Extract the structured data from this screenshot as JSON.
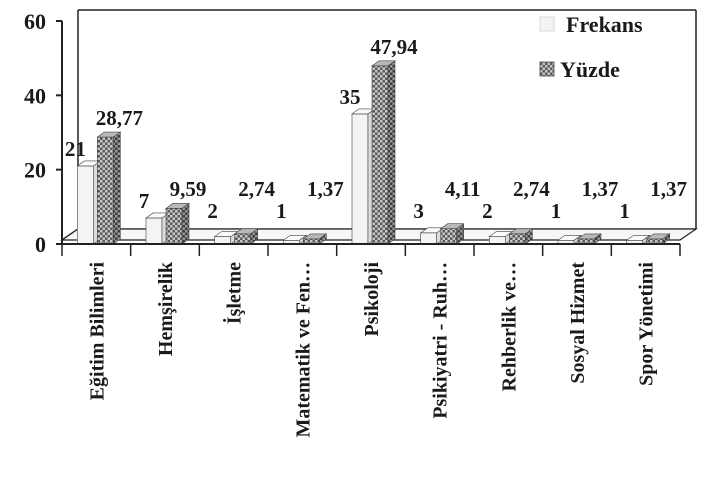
{
  "chart_data": {
    "type": "bar",
    "title": "",
    "xlabel": "",
    "ylabel": "",
    "ylim": [
      0,
      60
    ],
    "yticks": [
      0,
      20,
      40,
      60
    ],
    "grid": false,
    "legend_position": "top-right",
    "categories": [
      "Eğitim Bilimleri",
      "Hemşirelik",
      "İşletme",
      "Matematik ve Fen…",
      "Psikoloji",
      "Psikiyatri - Ruh…",
      "Rehberlik ve…",
      "Sosyal Hizmet",
      "Spor Yönetimi"
    ],
    "series": [
      {
        "name": "Frekans",
        "values": [
          21,
          7,
          2,
          1,
          35,
          3,
          2,
          1,
          1
        ],
        "labels": [
          "21",
          "7",
          "2",
          "1",
          "35",
          "3",
          "2",
          "1",
          "1"
        ],
        "color": "#f4f4f4"
      },
      {
        "name": "Yüzde",
        "values": [
          28.77,
          9.59,
          2.74,
          1.37,
          47.94,
          4.11,
          2.74,
          1.37,
          1.37
        ],
        "labels": [
          "28,77",
          "9,59",
          "2,74",
          "1,37",
          "47,94",
          "4,11",
          "2,74",
          "1,37",
          "1,37"
        ],
        "color": "#6b6b6b"
      }
    ]
  }
}
